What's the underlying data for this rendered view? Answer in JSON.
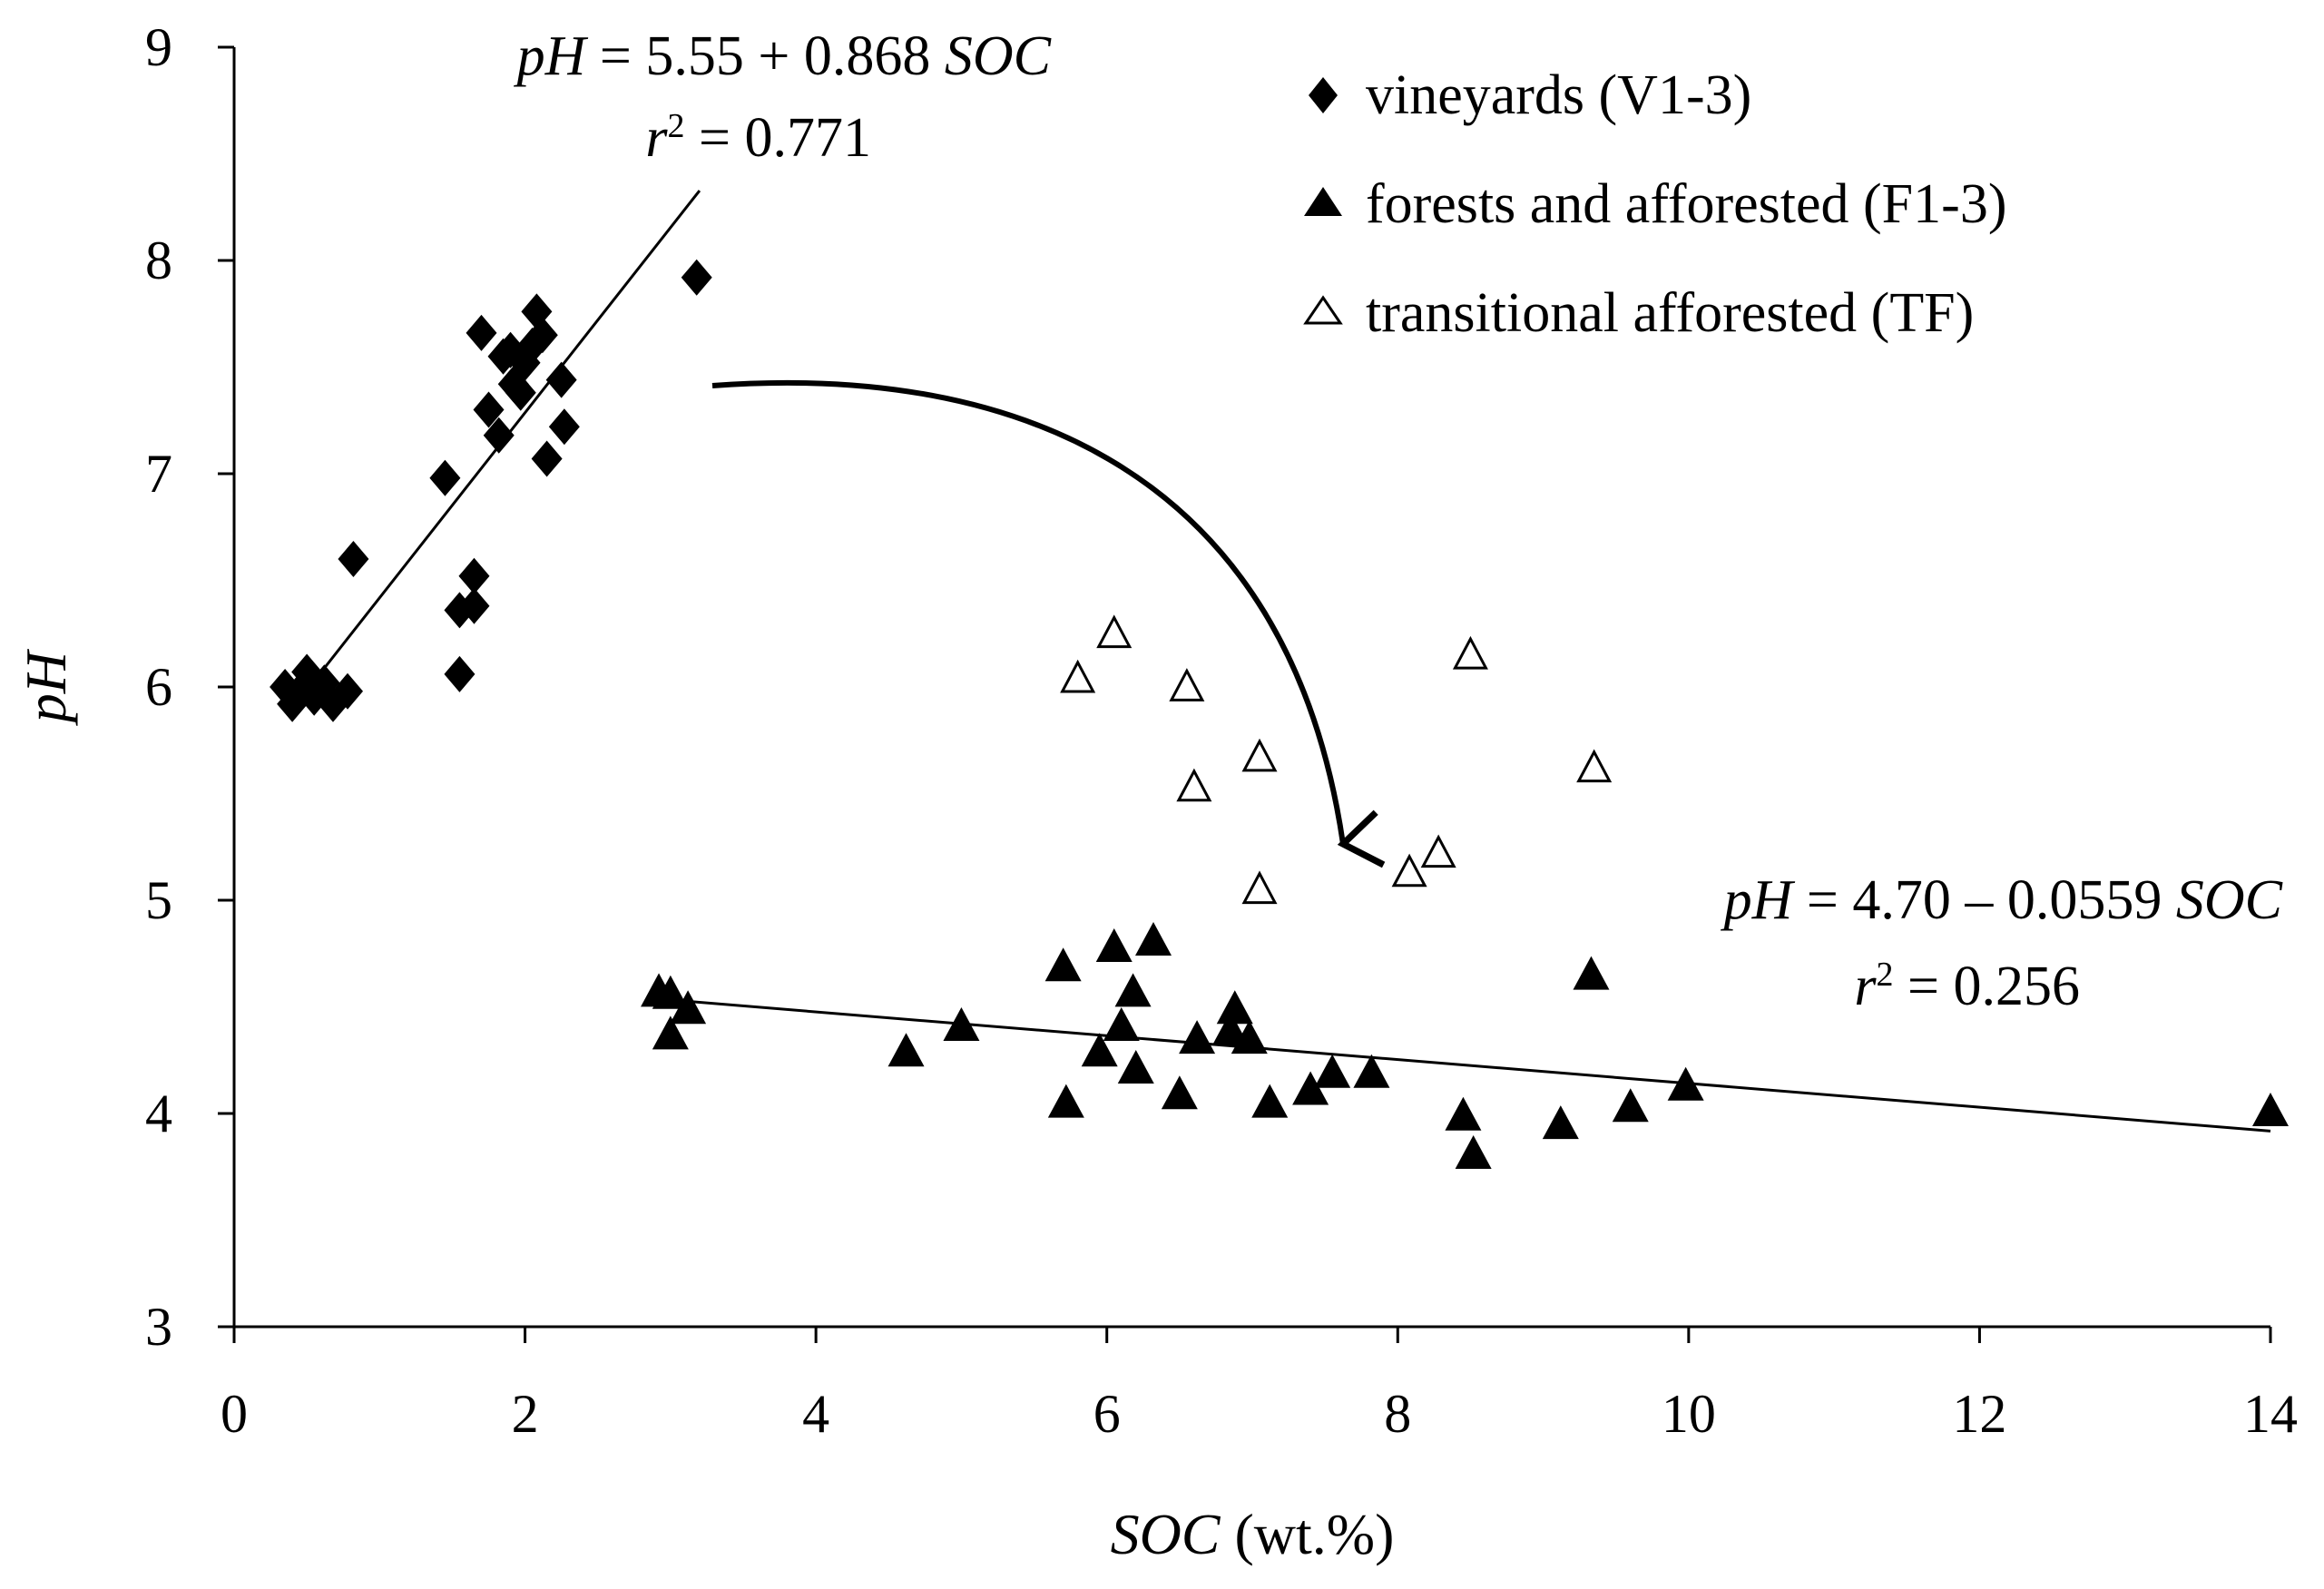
{
  "chart_data": {
    "type": "scatter",
    "title": "",
    "xlabel": {
      "var": "SOC",
      "unit": " (wt.%)"
    },
    "ylabel": "pH",
    "xlim": [
      0,
      14
    ],
    "ylim": [
      3,
      9
    ],
    "xticks": [
      0,
      2,
      4,
      6,
      8,
      10,
      12,
      14
    ],
    "yticks": [
      3,
      4,
      5,
      6,
      7,
      8,
      9
    ],
    "series": [
      {
        "name": "vineyards (V1-3)",
        "marker": "diamond-filled",
        "points": [
          [
            0.35,
            6.0
          ],
          [
            0.4,
            5.92
          ],
          [
            0.45,
            5.98
          ],
          [
            0.5,
            6.07
          ],
          [
            0.55,
            5.95
          ],
          [
            0.62,
            6.02
          ],
          [
            0.68,
            5.92
          ],
          [
            0.78,
            5.98
          ],
          [
            0.82,
            6.6
          ],
          [
            1.45,
            6.98
          ],
          [
            1.55,
            6.06
          ],
          [
            1.55,
            6.36
          ],
          [
            1.65,
            6.38
          ],
          [
            1.65,
            6.52
          ],
          [
            1.7,
            7.66
          ],
          [
            1.75,
            7.3
          ],
          [
            1.82,
            7.18
          ],
          [
            1.85,
            7.55
          ],
          [
            1.9,
            7.58
          ],
          [
            1.92,
            7.42
          ],
          [
            1.97,
            7.38
          ],
          [
            2.0,
            7.52
          ],
          [
            2.05,
            7.6
          ],
          [
            2.08,
            7.76
          ],
          [
            2.12,
            7.65
          ],
          [
            2.15,
            7.07
          ],
          [
            2.25,
            7.44
          ],
          [
            2.27,
            7.22
          ],
          [
            3.18,
            7.92
          ]
        ]
      },
      {
        "name": "forests and afforested (F1-3)",
        "marker": "triangle-filled",
        "points": [
          [
            2.92,
            4.56
          ],
          [
            3.0,
            4.36
          ],
          [
            3.0,
            4.55
          ],
          [
            3.12,
            4.48
          ],
          [
            4.62,
            4.28
          ],
          [
            5.0,
            4.4
          ],
          [
            5.7,
            4.68
          ],
          [
            5.72,
            4.04
          ],
          [
            5.95,
            4.28
          ],
          [
            6.05,
            4.77
          ],
          [
            6.1,
            4.4
          ],
          [
            6.18,
            4.56
          ],
          [
            6.2,
            4.2
          ],
          [
            6.32,
            4.8
          ],
          [
            6.5,
            4.08
          ],
          [
            6.62,
            4.34
          ],
          [
            6.85,
            4.38
          ],
          [
            6.88,
            4.48
          ],
          [
            6.98,
            4.34
          ],
          [
            7.12,
            4.04
          ],
          [
            7.4,
            4.1
          ],
          [
            7.55,
            4.18
          ],
          [
            7.82,
            4.18
          ],
          [
            8.45,
            3.98
          ],
          [
            8.52,
            3.8
          ],
          [
            9.12,
            3.94
          ],
          [
            9.33,
            4.64
          ],
          [
            9.6,
            4.02
          ],
          [
            9.98,
            4.12
          ],
          [
            14.0,
            4.0
          ]
        ]
      },
      {
        "name": "transitional afforested (TF)",
        "marker": "triangle-open",
        "points": [
          [
            5.8,
            6.03
          ],
          [
            6.05,
            6.24
          ],
          [
            6.55,
            5.99
          ],
          [
            6.6,
            5.52
          ],
          [
            7.05,
            5.66
          ],
          [
            7.05,
            5.04
          ],
          [
            8.08,
            5.12
          ],
          [
            8.28,
            5.21
          ],
          [
            8.5,
            6.14
          ],
          [
            9.35,
            5.61
          ]
        ]
      }
    ],
    "fits": [
      {
        "name": "vineyards fit",
        "intercept": 5.55,
        "slope": 0.868,
        "x_range": [
          0.5,
          3.2
        ],
        "equation": {
          "lhs": "pH",
          "rhs": " = 5.55 + 0.868 ",
          "var": "SOC"
        },
        "r2": {
          "sym": "r",
          "sup": "2",
          "value": " = 0.771"
        }
      },
      {
        "name": "forests fit",
        "intercept": 4.7,
        "slope": -0.0559,
        "x_range": [
          3.1,
          14.0
        ],
        "equation": {
          "lhs": "pH",
          "rhs": " = 4.70 – 0.0559 ",
          "var": "SOC"
        },
        "r2": {
          "sym": "r",
          "sup": "2",
          "value": " = 0.256"
        }
      }
    ],
    "annotation": "curved arrow from vineyards cluster down to transitional afforested points",
    "legend_position": "top-right",
    "grid": false
  }
}
